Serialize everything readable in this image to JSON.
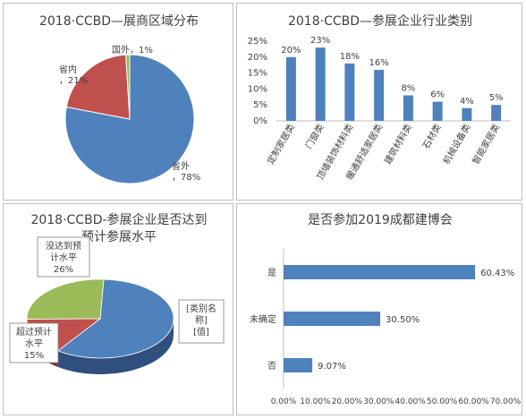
{
  "colors": {
    "blue": "#4f81bd",
    "red": "#c0504d",
    "green": "#9bbb59",
    "dark_blue": "#2f4f7f",
    "dark_red": "#8b2f2d"
  },
  "chart_data": [
    {
      "type": "pie",
      "title": "2018·CCBD—展商区域分布",
      "slices": [
        {
          "name": "省外",
          "value": 78,
          "label": "省外\n，78%",
          "color": "#4f81bd"
        },
        {
          "name": "省内",
          "value": 21,
          "label": "省内\n，21%",
          "color": "#c0504d"
        },
        {
          "name": "国外",
          "value": 1,
          "label": "国外，1%",
          "color": "#9bbb59"
        }
      ]
    },
    {
      "type": "bar",
      "title": "2018·CCBD—参展企业行业类别",
      "categories": [
        "定制家居类",
        "门窗类",
        "顶墙装饰材料类",
        "暖通舒适家居类",
        "建筑材料类",
        "石材类",
        "机械设备类",
        "智能家居类"
      ],
      "values": [
        20,
        23,
        18,
        16,
        8,
        6,
        4,
        5
      ],
      "data_labels": [
        "20%",
        "23%",
        "18%",
        "16%",
        "8%",
        "6%",
        "4%",
        "5%"
      ],
      "ylim": [
        0,
        25
      ],
      "yticks": [
        "0%",
        "5%",
        "10%",
        "15%",
        "20%",
        "25%"
      ],
      "grid": false,
      "color": "#4f81bd"
    },
    {
      "type": "pie",
      "title": "2018·CCBD-参展企业是否达到预计参展水平",
      "title_lines": [
        "2018·CCBD-参展企业是否达到",
        "预计参展水平"
      ],
      "slices": [
        {
          "name": "[类别名称]",
          "value": 59,
          "label_lines": [
            "[类别名",
            "称]",
            "[值]"
          ],
          "color": "#4f81bd"
        },
        {
          "name": "超过预计水平",
          "value": 15,
          "label_lines": [
            "超过预计",
            "水平",
            "15%"
          ],
          "color": "#c0504d"
        },
        {
          "name": "没达到预计水平",
          "value": 26,
          "label_lines": [
            "没达到预",
            "计水平",
            "26%"
          ],
          "color": "#9bbb59"
        }
      ]
    },
    {
      "type": "bar",
      "orientation": "horizontal",
      "title": "是否参加2019成都建博会",
      "categories": [
        "是",
        "未确定",
        "否"
      ],
      "values": [
        60.43,
        30.5,
        9.07
      ],
      "data_labels": [
        "60.43%",
        "30.50%",
        "9.07%"
      ],
      "xlim": [
        0,
        70
      ],
      "xticks": [
        "0.00%",
        "10.00%",
        "20.00%",
        "30.00%",
        "40.00%",
        "50.00%",
        "60.00%",
        "70.00%"
      ],
      "grid": false,
      "color": "#4f81bd"
    }
  ]
}
